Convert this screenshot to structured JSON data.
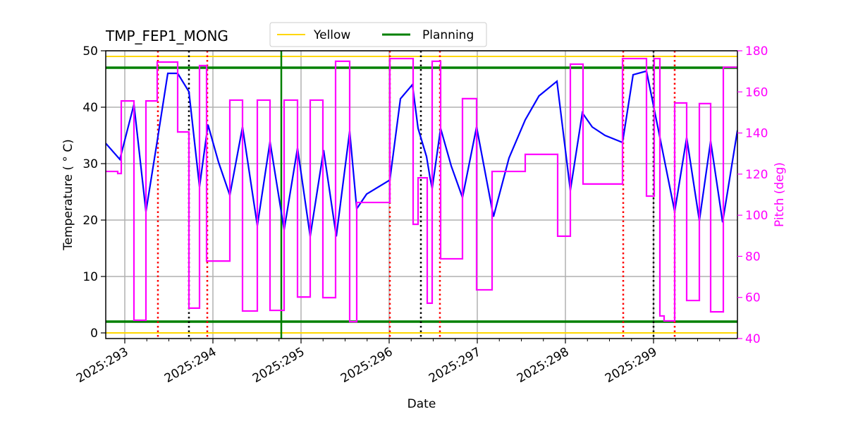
{
  "chart_data": {
    "type": "line",
    "title": "TMP_FEP1_MONG",
    "xlabel": "Date",
    "ylabel": "Temperature ( ° C)",
    "ylabel_right": "Pitch (deg)",
    "xlim": [
      292.784,
      299.952
    ],
    "ylim": [
      -1,
      50
    ],
    "ylim_right": [
      40,
      180
    ],
    "x_ticks": [
      293,
      294,
      295,
      296,
      297,
      298,
      299
    ],
    "x_tick_labels": [
      "2025:293",
      "2025:294",
      "2025:295",
      "2025:296",
      "2025:297",
      "2025:298",
      "2025:299"
    ],
    "y_ticks": [
      0,
      10,
      20,
      30,
      40,
      50
    ],
    "y_ticks_right": [
      40,
      60,
      80,
      100,
      120,
      140,
      160,
      180
    ],
    "grid": true,
    "legend": {
      "placement": "top-center",
      "entries": [
        {
          "name": "Yellow",
          "color": "#ffd700"
        },
        {
          "name": "Planning",
          "color": "#008000"
        }
      ]
    },
    "hlines": [
      {
        "series": "Yellow",
        "y": 49,
        "color": "#ffd700"
      },
      {
        "series": "Yellow",
        "y": 0,
        "color": "#ffd700"
      },
      {
        "series": "Planning",
        "y": 47,
        "color": "#008000"
      },
      {
        "series": "Planning",
        "y": 2,
        "color": "#008000"
      }
    ],
    "vlines": [
      {
        "x": 293.376,
        "color": "#ff0000",
        "style": "dotted"
      },
      {
        "x": 293.936,
        "color": "#ff0000",
        "style": "dotted"
      },
      {
        "x": 296.008,
        "color": "#ff0000",
        "style": "dotted"
      },
      {
        "x": 296.576,
        "color": "#ff0000",
        "style": "dotted"
      },
      {
        "x": 298.656,
        "color": "#ff0000",
        "style": "dotted"
      },
      {
        "x": 299.24,
        "color": "#ff0000",
        "style": "dotted"
      },
      {
        "x": 293.728,
        "color": "#000000",
        "style": "dotted"
      },
      {
        "x": 296.36,
        "color": "#000000",
        "style": "dotted"
      },
      {
        "x": 299.0,
        "color": "#000000",
        "style": "dotted"
      },
      {
        "x": 294.776,
        "color": "#008000",
        "style": "solid"
      }
    ],
    "series": [
      {
        "axis": "left",
        "color": "#0000ff",
        "points": [
          [
            292.784,
            33.6
          ],
          [
            292.944,
            30.75
          ],
          [
            293.104,
            40.5
          ],
          [
            293.24,
            21.5
          ],
          [
            293.368,
            34
          ],
          [
            293.488,
            46
          ],
          [
            293.6,
            46
          ],
          [
            293.728,
            42.75
          ],
          [
            293.848,
            25.9
          ],
          [
            293.944,
            36.9
          ],
          [
            294.064,
            30.25
          ],
          [
            294.192,
            24.4
          ],
          [
            294.336,
            36.5
          ],
          [
            294.504,
            19
          ],
          [
            294.648,
            33.9
          ],
          [
            294.808,
            18.25
          ],
          [
            294.96,
            32.75
          ],
          [
            295.104,
            17.1
          ],
          [
            295.256,
            32.4
          ],
          [
            295.4,
            17.1
          ],
          [
            295.552,
            35.75
          ],
          [
            295.632,
            22
          ],
          [
            295.744,
            24.6
          ],
          [
            296.008,
            27.1
          ],
          [
            296.128,
            41.5
          ],
          [
            296.264,
            44
          ],
          [
            296.328,
            36.25
          ],
          [
            296.424,
            31.25
          ],
          [
            296.464,
            27.5
          ],
          [
            296.488,
            25.6
          ],
          [
            296.584,
            36.25
          ],
          [
            296.704,
            29.6
          ],
          [
            296.832,
            24
          ],
          [
            296.992,
            36.5
          ],
          [
            297.184,
            20.6
          ],
          [
            297.36,
            31
          ],
          [
            297.544,
            37.75
          ],
          [
            297.7,
            42
          ],
          [
            297.904,
            44.6
          ],
          [
            298.056,
            25.25
          ],
          [
            298.192,
            39
          ],
          [
            298.304,
            36.5
          ],
          [
            298.45,
            35
          ],
          [
            298.648,
            33.75
          ],
          [
            298.768,
            45.75
          ],
          [
            298.92,
            46.4
          ],
          [
            299.056,
            35.9
          ],
          [
            299.12,
            30.9
          ],
          [
            299.24,
            21.5
          ],
          [
            299.376,
            34.6
          ],
          [
            299.52,
            19.9
          ],
          [
            299.648,
            34
          ],
          [
            299.784,
            19.6
          ],
          [
            299.952,
            35.9
          ]
        ]
      },
      {
        "axis": "right",
        "color": "#ff00ff",
        "step": true,
        "points": [
          [
            292.784,
            121.3
          ],
          [
            292.92,
            120.3
          ],
          [
            292.96,
            155.6
          ],
          [
            293.104,
            48.9
          ],
          [
            293.24,
            155.6
          ],
          [
            293.368,
            174.5
          ],
          [
            293.6,
            140.5
          ],
          [
            293.728,
            54.8
          ],
          [
            293.848,
            172.8
          ],
          [
            293.928,
            77.7
          ],
          [
            294.192,
            156
          ],
          [
            294.336,
            53.4
          ],
          [
            294.504,
            156
          ],
          [
            294.648,
            53.7
          ],
          [
            294.808,
            156
          ],
          [
            294.96,
            60.2
          ],
          [
            295.104,
            156
          ],
          [
            295.248,
            59.9
          ],
          [
            295.392,
            174.9
          ],
          [
            295.552,
            48.2
          ],
          [
            295.632,
            106.2
          ],
          [
            296.008,
            176.2
          ],
          [
            296.272,
            95.6
          ],
          [
            296.328,
            118.2
          ],
          [
            296.432,
            57.2
          ],
          [
            296.488,
            174.9
          ],
          [
            296.584,
            78.8
          ],
          [
            296.832,
            156.7
          ],
          [
            296.992,
            63.7
          ],
          [
            297.168,
            121.3
          ],
          [
            297.544,
            129.6
          ],
          [
            297.912,
            89.8
          ],
          [
            298.056,
            173.5
          ],
          [
            298.2,
            115.2
          ],
          [
            298.648,
            176.2
          ],
          [
            298.92,
            109.3
          ],
          [
            299.008,
            176.2
          ],
          [
            299.072,
            51
          ],
          [
            299.12,
            48.6
          ],
          [
            299.24,
            154.6
          ],
          [
            299.376,
            58.5
          ],
          [
            299.52,
            154.3
          ],
          [
            299.648,
            53
          ],
          [
            299.792,
            172
          ],
          [
            299.952,
            172
          ]
        ]
      }
    ]
  }
}
